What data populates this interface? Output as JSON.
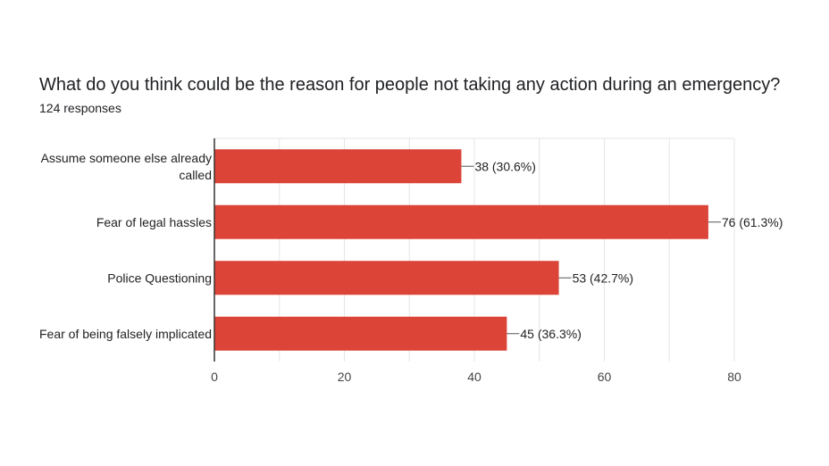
{
  "header": {
    "question": "What do you think could be the reason for people not taking any action during an emergency?",
    "responses": "124 responses"
  },
  "colors": {
    "bar": "#db4437",
    "grid": "#e6e6e6",
    "axis": "#333333"
  },
  "chart_data": {
    "type": "bar",
    "orientation": "horizontal",
    "title": "What do you think could be the reason for people not taking any action during an emergency?",
    "subtitle": "124 responses",
    "categories": [
      [
        "Assume someone else already",
        "called"
      ],
      [
        "Fear of legal hassles"
      ],
      [
        "Police Questioning"
      ],
      [
        "Fear of being falsely implicated"
      ]
    ],
    "values": [
      38,
      76,
      53,
      45
    ],
    "data_labels": [
      "38 (30.6%)",
      "76 (61.3%)",
      "53 (42.7%)",
      "45 (36.3%)"
    ],
    "xlim": [
      0,
      80
    ],
    "xticks": [
      0,
      20,
      40,
      60,
      80
    ],
    "grid": true,
    "xlabel": "",
    "ylabel": ""
  }
}
